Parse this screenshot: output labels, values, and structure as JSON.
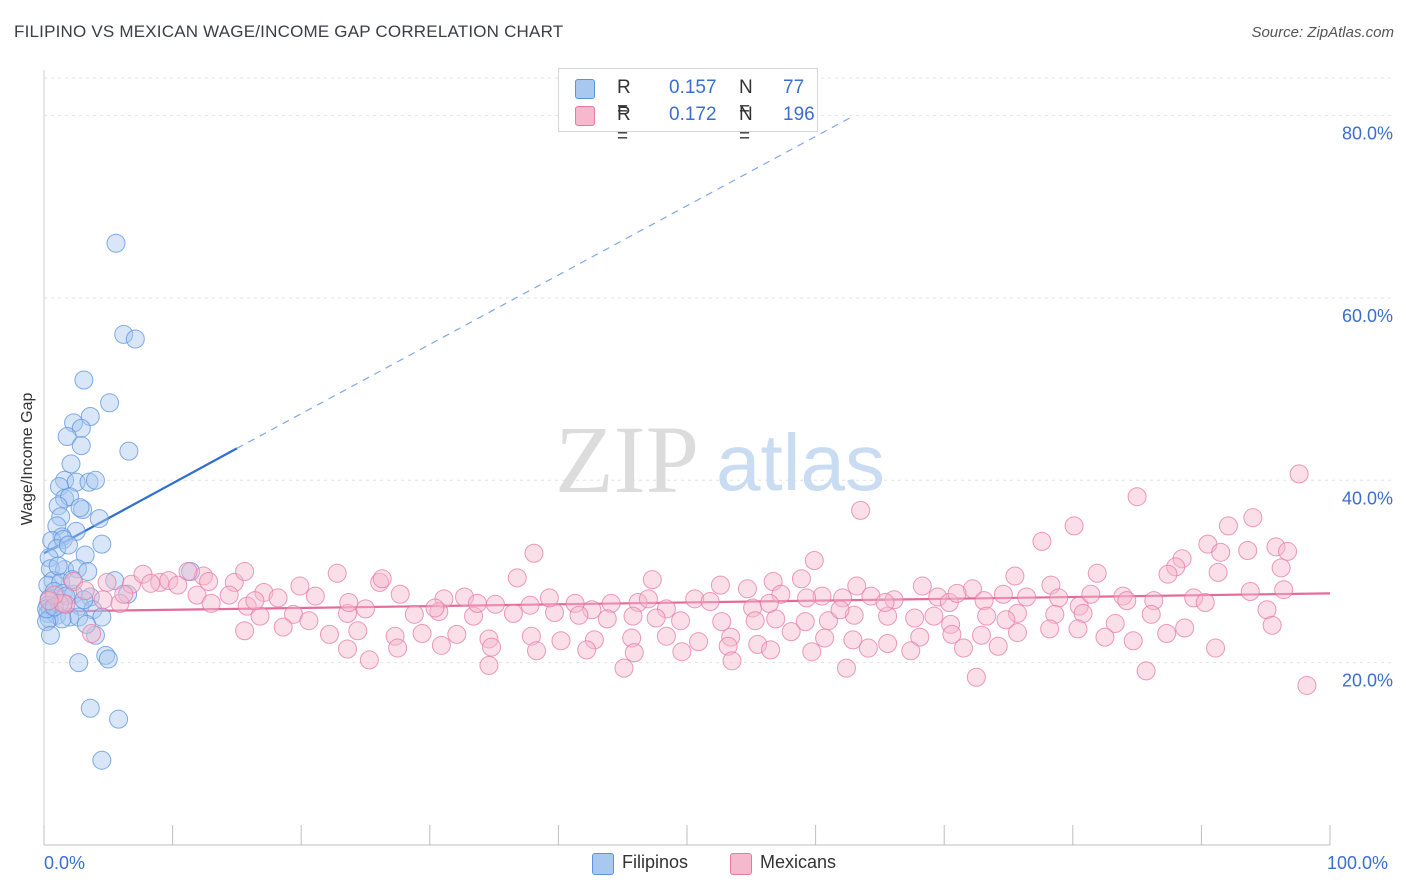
{
  "title": "FILIPINO VS MEXICAN WAGE/INCOME GAP CORRELATION CHART",
  "source": "Source: ZipAtlas.com",
  "watermark": {
    "zip": "ZIP",
    "atlas": "atlas"
  },
  "legend": {
    "rows": [
      {
        "r_label": "R =",
        "r_value": "0.157",
        "n_label": "N =",
        "n_value": "77",
        "color": "#a8c8f0"
      },
      {
        "r_label": "R =",
        "r_value": "0.172",
        "n_label": "N =",
        "n_value": "196",
        "color": "#f5b8cc"
      }
    ]
  },
  "bottom_legend": {
    "filipinos": {
      "label": "Filipinos",
      "color": "#a8c8f0"
    },
    "mexicans": {
      "label": "Mexicans",
      "color": "#f5b8cc"
    }
  },
  "chart_data": {
    "type": "scatter",
    "title": "FILIPINO VS MEXICAN WAGE/INCOME GAP CORRELATION CHART",
    "xlabel": "",
    "ylabel": "Wage/Income Gap",
    "xlim": [
      0,
      100
    ],
    "ylim": [
      0,
      85
    ],
    "x_tick_labels": [
      "0.0%",
      "100.0%"
    ],
    "y_ticks": [
      20,
      40,
      60,
      80
    ],
    "y_tick_labels": [
      "20.0%",
      "40.0%",
      "60.0%",
      "80.0%"
    ],
    "grid": true,
    "legend_position": "top-center",
    "series": [
      {
        "name": "Filipinos",
        "color": "#5b93dc",
        "fill": "#a8c8f0",
        "trend": {
          "x": [
            0,
            15
          ],
          "y": [
            32,
            43.5
          ],
          "dashed_extension_to": [
            63,
            80
          ]
        },
        "points": [
          [
            5.6,
            66
          ],
          [
            6.2,
            56
          ],
          [
            7.1,
            55.5
          ],
          [
            3.1,
            51
          ],
          [
            5.1,
            48.5
          ],
          [
            3.6,
            47
          ],
          [
            2.3,
            46.3
          ],
          [
            2.9,
            45.7
          ],
          [
            1.8,
            44.8
          ],
          [
            2.9,
            43.8
          ],
          [
            6.6,
            43.2
          ],
          [
            2.1,
            41.8
          ],
          [
            1.6,
            40
          ],
          [
            2.5,
            39.8
          ],
          [
            3.5,
            39.8
          ],
          [
            4.0,
            40
          ],
          [
            1.2,
            39.3
          ],
          [
            1.6,
            38
          ],
          [
            2.0,
            38.2
          ],
          [
            1.1,
            37.2
          ],
          [
            3.0,
            36.8
          ],
          [
            2.8,
            37
          ],
          [
            1.3,
            36
          ],
          [
            4.3,
            35.8
          ],
          [
            1.0,
            35
          ],
          [
            2.5,
            34.4
          ],
          [
            1.4,
            33.8
          ],
          [
            0.6,
            33.4
          ],
          [
            1.5,
            33.5
          ],
          [
            4.5,
            33
          ],
          [
            1.0,
            32.5
          ],
          [
            0.4,
            31.5
          ],
          [
            3.2,
            31.8
          ],
          [
            0.5,
            30.3
          ],
          [
            1.6,
            30.2
          ],
          [
            2.6,
            30.3
          ],
          [
            3.4,
            30
          ],
          [
            0.7,
            29
          ],
          [
            0.3,
            28.5
          ],
          [
            1.3,
            28.8
          ],
          [
            5.5,
            29
          ],
          [
            0.8,
            27.8
          ],
          [
            1.5,
            27.6
          ],
          [
            2.3,
            27.5
          ],
          [
            3.6,
            27.2
          ],
          [
            6.5,
            27.5
          ],
          [
            0.4,
            27
          ],
          [
            1.7,
            27.3
          ],
          [
            0.3,
            26.3
          ],
          [
            1.2,
            26.5
          ],
          [
            2.8,
            26.2
          ],
          [
            0.5,
            25.8
          ],
          [
            3.8,
            25.8
          ],
          [
            0.3,
            25.4
          ],
          [
            1.0,
            25.2
          ],
          [
            2.0,
            25
          ],
          [
            2.7,
            25
          ],
          [
            4.5,
            25
          ],
          [
            0.4,
            24.8
          ],
          [
            1.4,
            24.8
          ],
          [
            0.2,
            24.5
          ],
          [
            0.5,
            23
          ],
          [
            4.0,
            23
          ],
          [
            4.8,
            20.8
          ],
          [
            5.0,
            20.4
          ],
          [
            2.7,
            20
          ],
          [
            3.6,
            15
          ],
          [
            5.8,
            13.8
          ],
          [
            4.5,
            9.3
          ],
          [
            11.4,
            30
          ],
          [
            3.1,
            26.9
          ],
          [
            0.2,
            25.9
          ],
          [
            2.2,
            29.1
          ],
          [
            1.9,
            32.9
          ],
          [
            0.8,
            26.1
          ],
          [
            3.3,
            24.2
          ],
          [
            1.1,
            30.6
          ]
        ]
      },
      {
        "name": "Mexicans",
        "color": "#e77aa3",
        "fill": "#f5b8cc",
        "trend": {
          "x": [
            0,
            100
          ],
          "y": [
            25.6,
            27.6
          ]
        },
        "points": [
          [
            97.6,
            40.7
          ],
          [
            85.0,
            38.2
          ],
          [
            63.5,
            36.7
          ],
          [
            80.1,
            35
          ],
          [
            94.0,
            35.9
          ],
          [
            92.1,
            35
          ],
          [
            77.6,
            33.3
          ],
          [
            90.5,
            33
          ],
          [
            95.8,
            32.7
          ],
          [
            93.6,
            32.3
          ],
          [
            96.7,
            32.2
          ],
          [
            91.5,
            32.1
          ],
          [
            38.1,
            32
          ],
          [
            88.5,
            31.4
          ],
          [
            59.9,
            31.2
          ],
          [
            88.0,
            30.5
          ],
          [
            96.2,
            30.4
          ],
          [
            81.9,
            29.8
          ],
          [
            91.3,
            29.9
          ],
          [
            87.4,
            29.7
          ],
          [
            75.5,
            29.5
          ],
          [
            58.9,
            29.2
          ],
          [
            36.8,
            29.3
          ],
          [
            47.3,
            29.1
          ],
          [
            56.7,
            28.9
          ],
          [
            78.3,
            28.5
          ],
          [
            68.3,
            28.4
          ],
          [
            72.2,
            28.1
          ],
          [
            54.7,
            28.1
          ],
          [
            52.6,
            28.5
          ],
          [
            63.2,
            28.4
          ],
          [
            26.1,
            28.8
          ],
          [
            14.8,
            28.8
          ],
          [
            19.9,
            28.4
          ],
          [
            9.0,
            28.8
          ],
          [
            12.4,
            29.5
          ],
          [
            11.2,
            30
          ],
          [
            15.6,
            30
          ],
          [
            22.8,
            29.8
          ],
          [
            26.3,
            29.2
          ],
          [
            17.1,
            27.7
          ],
          [
            18.2,
            27.1
          ],
          [
            11.9,
            27.4
          ],
          [
            27.7,
            27.5
          ],
          [
            21.1,
            27.3
          ],
          [
            31.1,
            27
          ],
          [
            32.7,
            27.2
          ],
          [
            35.1,
            26.4
          ],
          [
            41.3,
            26.5
          ],
          [
            42.6,
            25.8
          ],
          [
            44.1,
            26.5
          ],
          [
            46.2,
            26.6
          ],
          [
            48.4,
            25.9
          ],
          [
            50.6,
            27
          ],
          [
            51.8,
            26.7
          ],
          [
            55.1,
            26
          ],
          [
            57.3,
            27.5
          ],
          [
            60.5,
            27.3
          ],
          [
            62.1,
            27.1
          ],
          [
            64.3,
            27.3
          ],
          [
            66.1,
            26.9
          ],
          [
            69.5,
            27.2
          ],
          [
            70.4,
            26.6
          ],
          [
            73.1,
            26.8
          ],
          [
            74.6,
            27.5
          ],
          [
            76.4,
            27.2
          ],
          [
            78.9,
            27.1
          ],
          [
            80.5,
            26.2
          ],
          [
            83.9,
            27.3
          ],
          [
            86.3,
            26.8
          ],
          [
            89.4,
            27.1
          ],
          [
            93.8,
            27.8
          ],
          [
            96.4,
            28
          ],
          [
            13.0,
            26.5
          ],
          [
            15.8,
            26.2
          ],
          [
            16.8,
            25.1
          ],
          [
            19.4,
            25.3
          ],
          [
            23.6,
            25.4
          ],
          [
            25.0,
            25.9
          ],
          [
            28.8,
            25.3
          ],
          [
            30.7,
            25.6
          ],
          [
            33.4,
            25.1
          ],
          [
            33.7,
            26.5
          ],
          [
            36.5,
            25.4
          ],
          [
            39.7,
            25.5
          ],
          [
            41.6,
            25.2
          ],
          [
            43.8,
            24.8
          ],
          [
            45.8,
            25.1
          ],
          [
            47.6,
            24.9
          ],
          [
            49.5,
            24.6
          ],
          [
            52.7,
            24.5
          ],
          [
            55.3,
            24.6
          ],
          [
            56.9,
            24.8
          ],
          [
            59.2,
            24.5
          ],
          [
            61.0,
            24.6
          ],
          [
            63.0,
            25.2
          ],
          [
            65.6,
            25.1
          ],
          [
            67.7,
            24.9
          ],
          [
            70.5,
            24.2
          ],
          [
            73.3,
            25.1
          ],
          [
            75.7,
            25.4
          ],
          [
            78.6,
            25.3
          ],
          [
            80.8,
            25.4
          ],
          [
            83.3,
            24.3
          ],
          [
            86.1,
            25.3
          ],
          [
            88.7,
            23.8
          ],
          [
            15.6,
            23.5
          ],
          [
            18.6,
            23.9
          ],
          [
            20.6,
            24.6
          ],
          [
            22.2,
            23.1
          ],
          [
            24.4,
            23.5
          ],
          [
            27.3,
            22.9
          ],
          [
            29.4,
            23.2
          ],
          [
            32.1,
            23.1
          ],
          [
            34.6,
            22.6
          ],
          [
            37.9,
            22.9
          ],
          [
            40.2,
            22.4
          ],
          [
            42.8,
            22.5
          ],
          [
            45.7,
            22.7
          ],
          [
            48.4,
            22.9
          ],
          [
            50.9,
            22.3
          ],
          [
            53.4,
            22.8
          ],
          [
            55.5,
            22
          ],
          [
            58.1,
            23.4
          ],
          [
            60.7,
            22.7
          ],
          [
            62.9,
            22.5
          ],
          [
            65.6,
            22.1
          ],
          [
            68.1,
            22.8
          ],
          [
            70.6,
            23.1
          ],
          [
            72.9,
            23
          ],
          [
            75.7,
            23.3
          ],
          [
            78.2,
            23.7
          ],
          [
            80.4,
            23.7
          ],
          [
            82.5,
            22.8
          ],
          [
            84.7,
            22.4
          ],
          [
            87.3,
            23.2
          ],
          [
            23.6,
            21.5
          ],
          [
            27.5,
            21.6
          ],
          [
            30.9,
            21.9
          ],
          [
            34.8,
            21.7
          ],
          [
            38.3,
            21.3
          ],
          [
            42.2,
            21.4
          ],
          [
            45.9,
            21.1
          ],
          [
            49.6,
            21.2
          ],
          [
            53.2,
            21.8
          ],
          [
            56.5,
            21.4
          ],
          [
            59.7,
            21.2
          ],
          [
            64.1,
            21.6
          ],
          [
            67.4,
            21.3
          ],
          [
            71.5,
            21.6
          ],
          [
            74.2,
            21.8
          ],
          [
            25.3,
            20.3
          ],
          [
            34.6,
            19.7
          ],
          [
            45.1,
            19.4
          ],
          [
            53.5,
            20.2
          ],
          [
            62.4,
            19.4
          ],
          [
            72.5,
            18.4
          ],
          [
            85.7,
            19.1
          ],
          [
            91.1,
            21.6
          ],
          [
            98.2,
            17.5
          ],
          [
            3.7,
            23.2
          ],
          [
            5.9,
            26.5
          ],
          [
            4.9,
            28.8
          ],
          [
            6.8,
            28.6
          ],
          [
            7.7,
            29.7
          ],
          [
            9.7,
            29
          ],
          [
            1.7,
            26.4
          ],
          [
            2.3,
            28.9
          ],
          [
            3.2,
            27.9
          ],
          [
            1.5,
            26.5
          ],
          [
            0.8,
            27.4
          ],
          [
            6.2,
            27.5
          ],
          [
            8.3,
            28.7
          ],
          [
            10.4,
            28.5
          ],
          [
            4.6,
            26.9
          ],
          [
            0.4,
            26.8
          ],
          [
            14.4,
            27.4
          ],
          [
            37.8,
            26.3
          ],
          [
            39.3,
            27.1
          ],
          [
            47.0,
            27
          ],
          [
            65.4,
            26.6
          ],
          [
            71.0,
            27.6
          ],
          [
            81.4,
            27.5
          ],
          [
            84.2,
            26.8
          ],
          [
            90.3,
            26.6
          ],
          [
            95.1,
            25.8
          ],
          [
            95.5,
            24.1
          ],
          [
            16.4,
            26.8
          ],
          [
            12.8,
            28.9
          ],
          [
            56.4,
            26.5
          ],
          [
            61.9,
            25.8
          ],
          [
            69.2,
            25.1
          ],
          [
            74.8,
            24.7
          ],
          [
            59.3,
            27.1
          ],
          [
            30.4,
            26
          ],
          [
            23.7,
            26.6
          ]
        ]
      }
    ]
  }
}
